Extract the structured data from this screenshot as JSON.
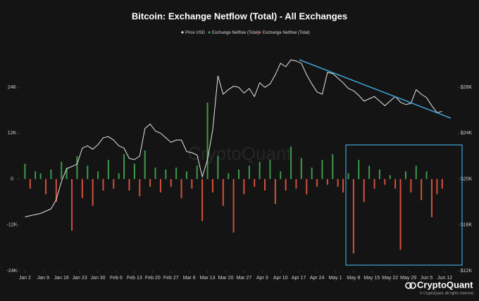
{
  "chart_data": {
    "type": "bar",
    "title": "Bitcoin: Exchange Netflow (Total) - All Exchanges",
    "watermark": "CryptoQuant",
    "brand": "CryptoQuant",
    "copyright": "© CryptoQuant. All rights reserved.",
    "x": [
      0,
      2,
      4,
      6,
      8,
      10,
      12,
      14,
      16,
      18,
      20,
      22,
      24,
      26,
      28,
      30,
      32,
      34,
      36,
      38,
      40,
      42,
      44,
      46,
      48,
      50,
      52,
      54,
      56,
      58,
      60,
      62,
      64,
      66,
      68,
      70,
      72,
      74,
      76,
      78,
      80,
      82,
      84,
      86,
      88,
      90,
      92,
      94,
      96,
      98,
      100,
      102,
      104,
      106,
      108,
      110,
      112,
      114,
      116,
      118,
      120,
      122,
      124,
      126,
      128,
      130,
      132,
      134,
      136,
      138,
      140,
      142,
      144,
      146,
      148,
      150,
      152,
      154,
      156,
      158,
      160
    ],
    "xlim": [
      -2,
      166
    ],
    "xticks": [
      {
        "value": 0,
        "label": "Jan 2"
      },
      {
        "value": 7,
        "label": "Jan 9"
      },
      {
        "value": 14,
        "label": "Jan 16"
      },
      {
        "value": 21,
        "label": "Jan 23"
      },
      {
        "value": 28,
        "label": "Jan 30"
      },
      {
        "value": 35,
        "label": "Feb 6"
      },
      {
        "value": 42,
        "label": "Feb 13"
      },
      {
        "value": 49,
        "label": "Feb 20"
      },
      {
        "value": 56,
        "label": "Feb 27"
      },
      {
        "value": 63,
        "label": "Mar 6"
      },
      {
        "value": 70,
        "label": "Mar 13"
      },
      {
        "value": 77,
        "label": "Mar 20"
      },
      {
        "value": 84,
        "label": "Mar 27"
      },
      {
        "value": 91,
        "label": "Apr 3"
      },
      {
        "value": 98,
        "label": "Apr 10"
      },
      {
        "value": 105,
        "label": "Apr 17"
      },
      {
        "value": 112,
        "label": "Apr 24"
      },
      {
        "value": 119,
        "label": "May 1"
      },
      {
        "value": 126,
        "label": "May 8"
      },
      {
        "value": 133,
        "label": "May 15"
      },
      {
        "value": 140,
        "label": "May 22"
      },
      {
        "value": 147,
        "label": "May 29"
      },
      {
        "value": 154,
        "label": "Jun 5"
      },
      {
        "value": 161,
        "label": "Jun 12"
      }
    ],
    "ylim": [
      -24000,
      36000
    ],
    "yticks": [
      {
        "value": -24000,
        "label": "-24K"
      },
      {
        "value": -12000,
        "label": "-12K"
      },
      0,
      {
        "value": 12000,
        "label": "12K"
      },
      {
        "value": 24000,
        "label": "24K"
      }
    ],
    "y2lim": [
      12000,
      32000
    ],
    "y2ticks": [
      {
        "value": 12000,
        "label": "$12K"
      },
      {
        "value": 16000,
        "label": "$16K"
      },
      {
        "value": 20000,
        "label": "$20K"
      },
      {
        "value": 24000,
        "label": "$24K"
      },
      {
        "value": 28000,
        "label": "$28K"
      }
    ],
    "series": [
      {
        "name": "Price USD",
        "type": "line",
        "axis": "y2",
        "color": "#e6e6e6",
        "values": [
          16700,
          16800,
          16900,
          17000,
          17200,
          17400,
          18200,
          19800,
          20900,
          21100,
          21300,
          22700,
          22900,
          22600,
          23000,
          23600,
          23700,
          23400,
          22900,
          22700,
          21800,
          21700,
          22000,
          24400,
          24800,
          24200,
          24000,
          23600,
          23200,
          23400,
          23400,
          22400,
          22300,
          22100,
          20200,
          21700,
          24300,
          29000,
          27400,
          27800,
          28100,
          28000,
          27500,
          27900,
          27200,
          28400,
          28000,
          28300,
          29100,
          30100,
          29800,
          30400,
          30300,
          30100,
          29100,
          28300,
          27600,
          27400,
          29300,
          29200,
          28800,
          28400,
          27900,
          27700,
          27300,
          26800,
          27000,
          27200,
          26800,
          26400,
          26800,
          27200,
          26700,
          26500,
          26600,
          27800,
          27400,
          27100,
          26400,
          25800,
          25900
        ]
      },
      {
        "name": "Exchange Netflow (Total)",
        "type": "bar",
        "color": "#3e9a4b",
        "values": [
          4000,
          null,
          2000,
          1500,
          null,
          2500,
          null,
          4500,
          3000,
          null,
          6000,
          null,
          3500,
          null,
          2000,
          null,
          5000,
          null,
          1500,
          6500,
          null,
          4000,
          null,
          7500,
          null,
          3000,
          null,
          2500,
          null,
          3000,
          null,
          2000,
          null,
          3500,
          null,
          20000,
          null,
          6000,
          null,
          1500,
          null,
          2500,
          null,
          3500,
          null,
          4500,
          null,
          5000,
          null,
          2000,
          null,
          8500,
          null,
          5500,
          null,
          3000,
          null,
          5000,
          null,
          6500,
          null,
          null,
          1500,
          null,
          5000,
          null,
          3500,
          null,
          2500,
          null,
          1000,
          null,
          null,
          2000,
          null,
          3500,
          null,
          2000,
          null,
          null,
          null
        ]
      },
      {
        "name": "Exchange Netflow (Total)",
        "type": "bar",
        "color": "#d4503e",
        "values": [
          null,
          -2500,
          null,
          null,
          -4000,
          null,
          -6000,
          null,
          null,
          -13500,
          null,
          -5000,
          null,
          -7000,
          null,
          -3000,
          null,
          -2500,
          null,
          null,
          -3000,
          null,
          -4500,
          null,
          -2000,
          null,
          -3500,
          null,
          -2000,
          null,
          -5000,
          null,
          -2500,
          null,
          -11000,
          null,
          -3500,
          null,
          -7000,
          null,
          -14000,
          null,
          -4000,
          null,
          -2000,
          null,
          -3000,
          null,
          -6500,
          null,
          -3000,
          null,
          -2500,
          null,
          -4000,
          null,
          -2000,
          null,
          -1500,
          null,
          -2000,
          -3500,
          null,
          -19500,
          null,
          -6000,
          null,
          -2500,
          null,
          -1500,
          null,
          -2500,
          -18500,
          null,
          -3500,
          null,
          -5500,
          null,
          -10000,
          -4000,
          -2500
        ]
      }
    ]
  }
}
